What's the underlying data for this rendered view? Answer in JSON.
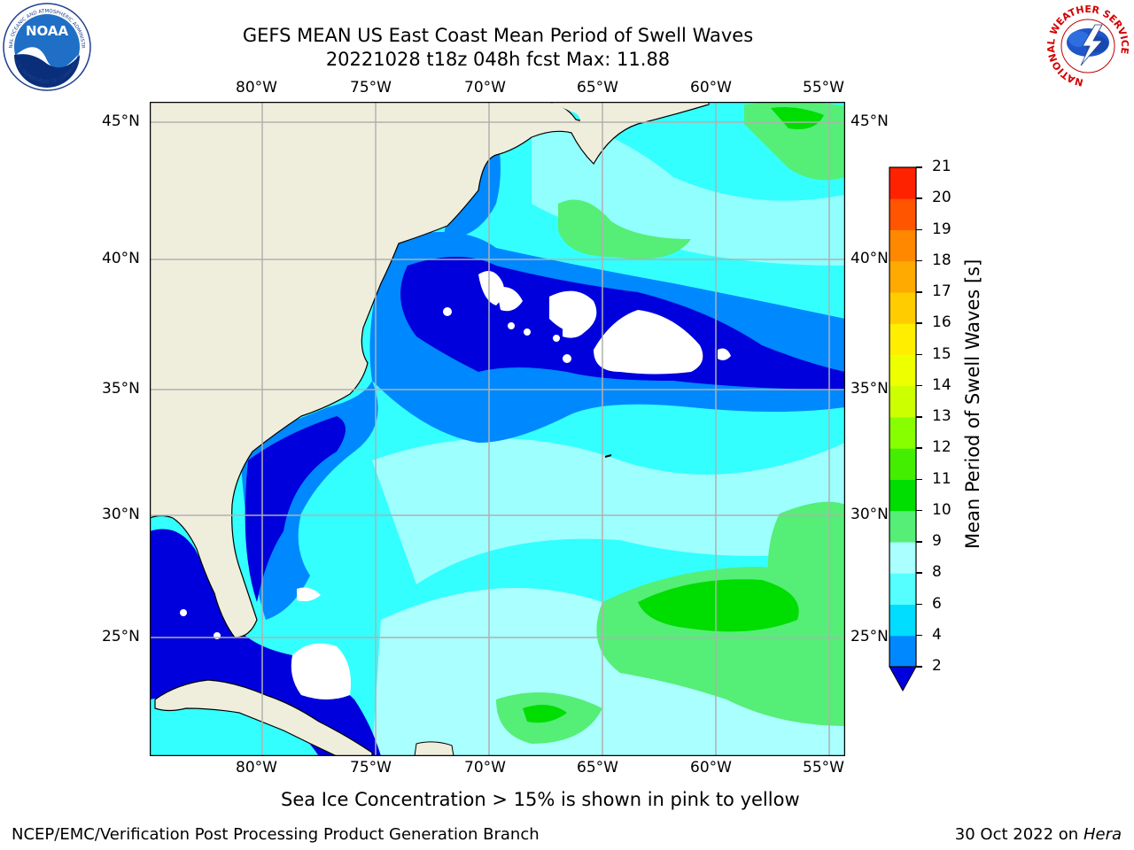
{
  "title": {
    "line1": "GEFS MEAN US East Coast Mean Period of Swell Waves",
    "line2": "20221028 t18z 048h fcst   Max: 11.88"
  },
  "logos": {
    "left": {
      "text": "NOAA",
      "ring_top": "NATIONAL OCEANIC AND ATMOSPHERIC ADMINISTRATION",
      "ring_bottom": "U.S. DEPARTMENT OF COMMERCE"
    },
    "right": {
      "ring": "NATIONAL WEATHER SERVICE"
    }
  },
  "map": {
    "lon_labels": [
      "80°W",
      "75°W",
      "70°W",
      "65°W",
      "60°W",
      "55°W"
    ],
    "lat_labels": [
      "45°N",
      "40°N",
      "35°N",
      "30°N",
      "25°N"
    ],
    "colors": {
      "land": "#efeedc",
      "ocean_base": "#33ffff",
      "gridline": "#b0b0b0",
      "no_data": "#ffffff"
    }
  },
  "colorbar": {
    "label": "Mean Period of Swell Waves [s]",
    "ticks": [
      "2",
      "4",
      "6",
      "8",
      "9",
      "10",
      "11",
      "12",
      "13",
      "14",
      "15",
      "16",
      "17",
      "18",
      "19",
      "20",
      "21"
    ],
    "colors": [
      "#0000dd",
      "#0088ff",
      "#00ddff",
      "#55ffff",
      "#aaffff",
      "#55ee77",
      "#00dd00",
      "#44ee00",
      "#88ff00",
      "#ccff00",
      "#eeff00",
      "#ffee00",
      "#ffcc00",
      "#ffaa00",
      "#ff8800",
      "#ff5500",
      "#ff2200",
      "#ff0000"
    ]
  },
  "subtitle": "Sea Ice Concentration > 15% is shown in pink to yellow",
  "footer": {
    "left": "NCEP/EMC/Verification Post Processing Product Generation Branch",
    "date": "30 Oct 2022 on ",
    "machine": "Hera"
  }
}
